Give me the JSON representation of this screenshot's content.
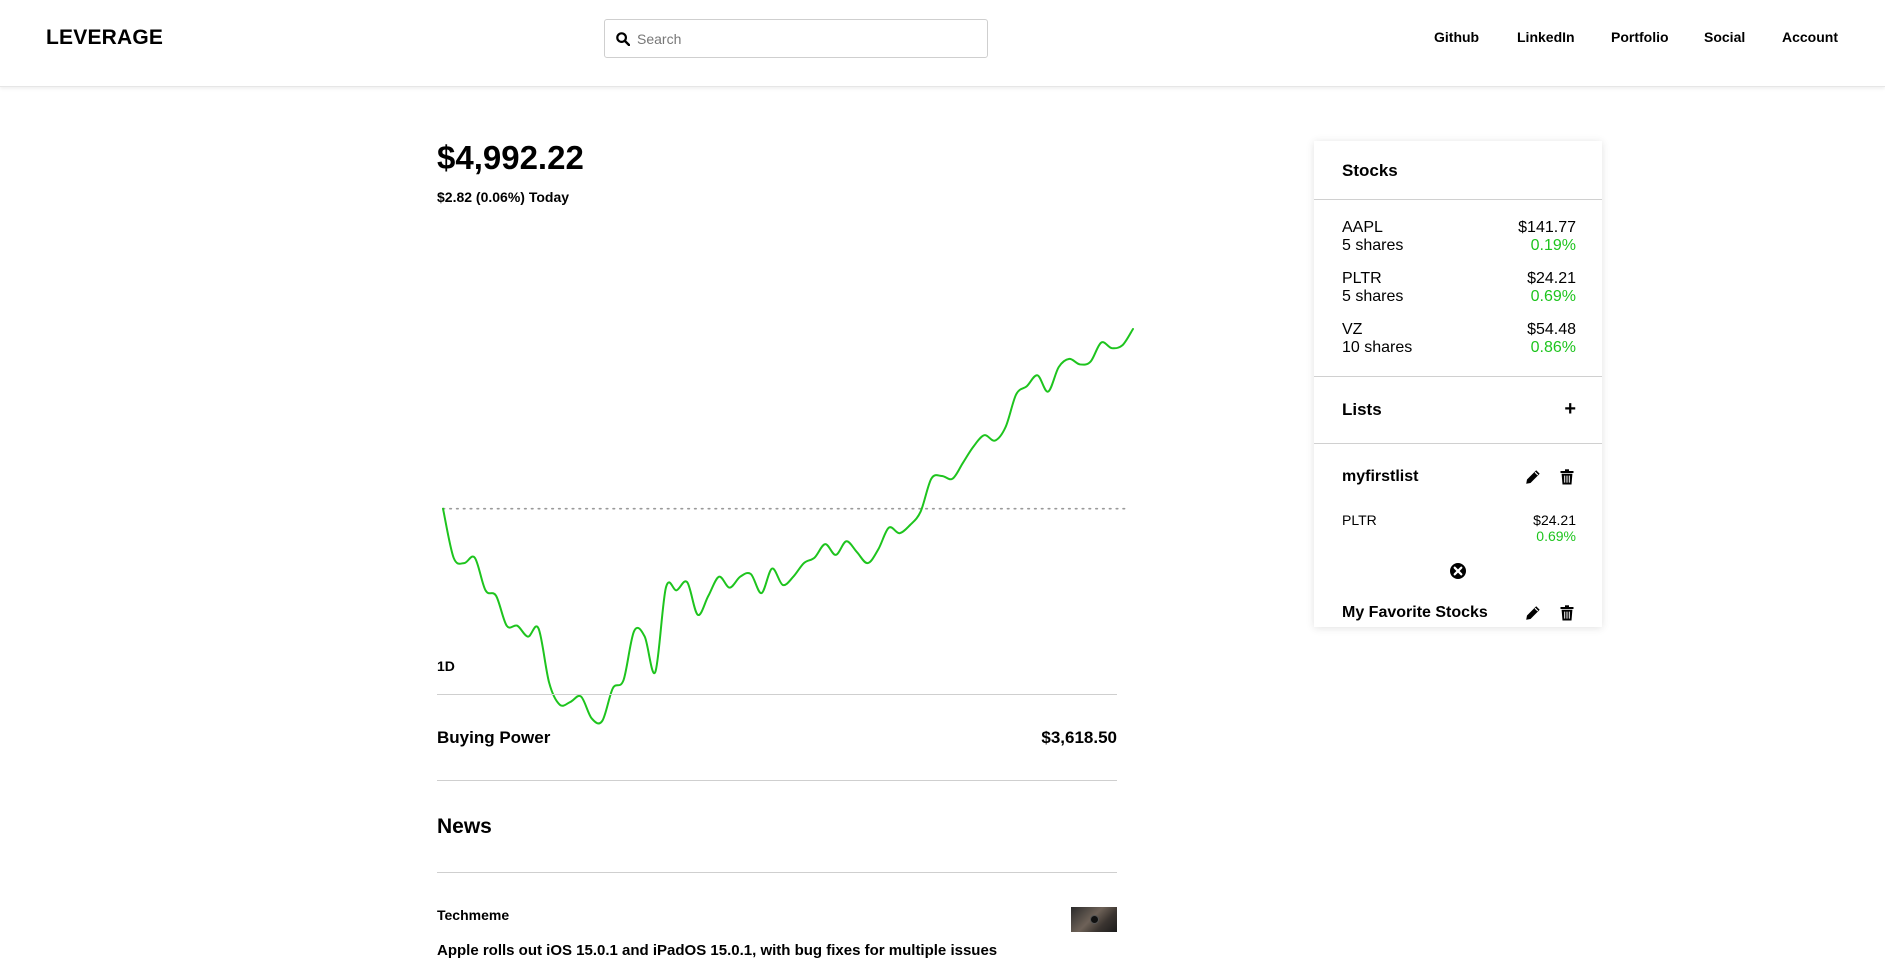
{
  "header": {
    "logo": "LEVERAGE",
    "search_placeholder": "Search",
    "nav": [
      "Github",
      "LinkedIn",
      "Portfolio",
      "Social",
      "Account"
    ]
  },
  "portfolio": {
    "balance": "$4,992.22",
    "change_today": "$2.82 (0.06%) Today",
    "range_label": "1D",
    "buying_power_label": "Buying Power",
    "buying_power_value": "$3,618.50",
    "line_color": "#1ec41e"
  },
  "chart_data": {
    "type": "line",
    "baseline": "dotted reference line at the opening value",
    "grid": false,
    "values": [
      100,
      82,
      80,
      82,
      70,
      68,
      57,
      57,
      53,
      56,
      36,
      28,
      29,
      31,
      23,
      22,
      34,
      37,
      55,
      53,
      40,
      71,
      70,
      73,
      61,
      68,
      75,
      71,
      75,
      76,
      69,
      78,
      72,
      75,
      80,
      82,
      87,
      83,
      88,
      84,
      80,
      85,
      93,
      91,
      94,
      99,
      111,
      112,
      111,
      117,
      123,
      127,
      125,
      130,
      142,
      145,
      149,
      143,
      152,
      155,
      153,
      154,
      161,
      159,
      160,
      166
    ]
  },
  "news": {
    "title": "News",
    "items": [
      {
        "source": "Techmeme",
        "headline": "Apple rolls out iOS 15.0.1 and iPadOS 15.0.1, with bug fixes for multiple issues"
      }
    ]
  },
  "sidebar": {
    "stocks_title": "Stocks",
    "stocks": [
      {
        "symbol": "AAPL",
        "shares": "5 shares",
        "price": "$141.77",
        "change": "0.19%"
      },
      {
        "symbol": "PLTR",
        "shares": "5 shares",
        "price": "$24.21",
        "change": "0.69%"
      },
      {
        "symbol": "VZ",
        "shares": "10 shares",
        "price": "$54.48",
        "change": "0.86%"
      }
    ],
    "lists_title": "Lists",
    "add_symbol": "+",
    "lists": [
      {
        "name": "myfirstlist",
        "items": [
          {
            "symbol": "PLTR",
            "price": "$24.21",
            "change": "0.69%"
          }
        ]
      },
      {
        "name": "My Favorite Stocks",
        "items": []
      }
    ]
  }
}
